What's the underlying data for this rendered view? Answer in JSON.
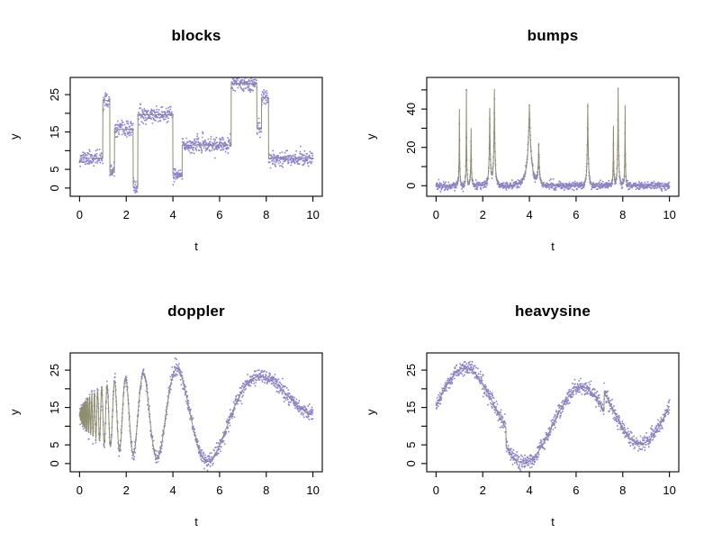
{
  "figure": {
    "background": "#ffffff",
    "point_color": "#7b70e0",
    "line_color": "#8f8f6e",
    "frame_color": "#000000",
    "text_color": "#000000"
  },
  "chart_data": [
    {
      "type": "scatter",
      "title": "blocks",
      "xlabel": "t",
      "ylabel": "y",
      "xlim": [
        -0.4,
        10.4
      ],
      "ylim": [
        -2.2,
        29.6
      ],
      "xticks": [
        {
          "v": 0,
          "label": "0"
        },
        {
          "v": 2,
          "label": "2"
        },
        {
          "v": 4,
          "label": "4"
        },
        {
          "v": 6,
          "label": "6"
        },
        {
          "v": 8,
          "label": "8"
        },
        {
          "v": 10,
          "label": "10"
        }
      ],
      "yticks": [
        {
          "v": 0,
          "label": "0"
        },
        {
          "v": 5,
          "label": "5"
        },
        {
          "v": 10
        },
        {
          "v": 15,
          "label": "15"
        },
        {
          "v": 20
        },
        {
          "v": 25,
          "label": "25"
        }
      ],
      "n_points": 1024,
      "noise_sd": 1,
      "seed": 11,
      "grid": false,
      "legend": null,
      "signal": {
        "kind": "piecewise",
        "breaks": [
          0,
          1,
          1.3,
          1.5,
          2.3,
          2.5,
          4,
          4.4,
          6.5,
          7.6,
          7.8,
          8.1,
          10
        ],
        "levels": [
          8,
          23.4,
          4.2,
          15.7,
          0.3,
          19.6,
          3.4,
          11.5,
          28,
          16.1,
          24.2,
          8
        ]
      }
    },
    {
      "type": "scatter",
      "title": "bumps",
      "xlabel": "t",
      "ylabel": "y",
      "xlim": [
        -0.4,
        10.4
      ],
      "ylim": [
        -5.5,
        56.5
      ],
      "xticks": [
        {
          "v": 0,
          "label": "0"
        },
        {
          "v": 2,
          "label": "2"
        },
        {
          "v": 4,
          "label": "4"
        },
        {
          "v": 6,
          "label": "6"
        },
        {
          "v": 8,
          "label": "8"
        },
        {
          "v": 10,
          "label": "10"
        }
      ],
      "yticks": [
        {
          "v": 0,
          "label": "0"
        },
        {
          "v": 10
        },
        {
          "v": 20,
          "label": "20"
        },
        {
          "v": 30
        },
        {
          "v": 40,
          "label": "40"
        },
        {
          "v": 50
        }
      ],
      "n_points": 1024,
      "noise_sd": 1,
      "seed": 22,
      "grid": false,
      "legend": null,
      "signal": {
        "kind": "bumps",
        "centers": [
          1,
          1.3,
          1.5,
          2.3,
          2.5,
          4,
          4.4,
          6.5,
          7.6,
          7.8,
          8.1
        ],
        "heights": [
          40,
          50,
          30,
          40,
          50,
          42,
          21,
          43,
          31,
          51,
          42
        ],
        "widths": [
          0.05,
          0.05,
          0.06,
          0.1,
          0.1,
          0.3,
          0.1,
          0.1,
          0.05,
          0.08,
          0.05
        ]
      }
    },
    {
      "type": "scatter",
      "title": "doppler",
      "xlabel": "t",
      "ylabel": "y",
      "xlim": [
        -0.4,
        10.4
      ],
      "ylim": [
        -2.2,
        29.6
      ],
      "xticks": [
        {
          "v": 0,
          "label": "0"
        },
        {
          "v": 2,
          "label": "2"
        },
        {
          "v": 4,
          "label": "4"
        },
        {
          "v": 6,
          "label": "6"
        },
        {
          "v": 8,
          "label": "8"
        },
        {
          "v": 10,
          "label": "10"
        }
      ],
      "yticks": [
        {
          "v": 0,
          "label": "0"
        },
        {
          "v": 5,
          "label": "5"
        },
        {
          "v": 10
        },
        {
          "v": 15,
          "label": "15"
        },
        {
          "v": 20
        },
        {
          "v": 25,
          "label": "25"
        }
      ],
      "n_points": 1024,
      "noise_sd": 1,
      "seed": 33,
      "grid": false,
      "legend": null,
      "signal": {
        "kind": "doppler",
        "base": 13,
        "amp": 25,
        "freq": 1.05,
        "phase_offset": 0.05
      }
    },
    {
      "type": "scatter",
      "title": "heavysine",
      "xlabel": "t",
      "ylabel": "y",
      "xlim": [
        -0.4,
        10.4
      ],
      "ylim": [
        -2.2,
        29.6
      ],
      "xticks": [
        {
          "v": 0,
          "label": "0"
        },
        {
          "v": 2,
          "label": "2"
        },
        {
          "v": 4,
          "label": "4"
        },
        {
          "v": 6,
          "label": "6"
        },
        {
          "v": 8,
          "label": "8"
        },
        {
          "v": 10,
          "label": "10"
        }
      ],
      "yticks": [
        {
          "v": 0,
          "label": "0"
        },
        {
          "v": 5,
          "label": "5"
        },
        {
          "v": 10
        },
        {
          "v": 15,
          "label": "15"
        },
        {
          "v": 20
        },
        {
          "v": 25,
          "label": "25"
        }
      ],
      "n_points": 1024,
      "noise_sd": 1,
      "seed": 44,
      "grid": false,
      "legend": null,
      "signal": {
        "kind": "heavisine",
        "base": 15.4,
        "scale": 2.53,
        "jump1": 0.3,
        "jump2": 0.72
      }
    }
  ]
}
